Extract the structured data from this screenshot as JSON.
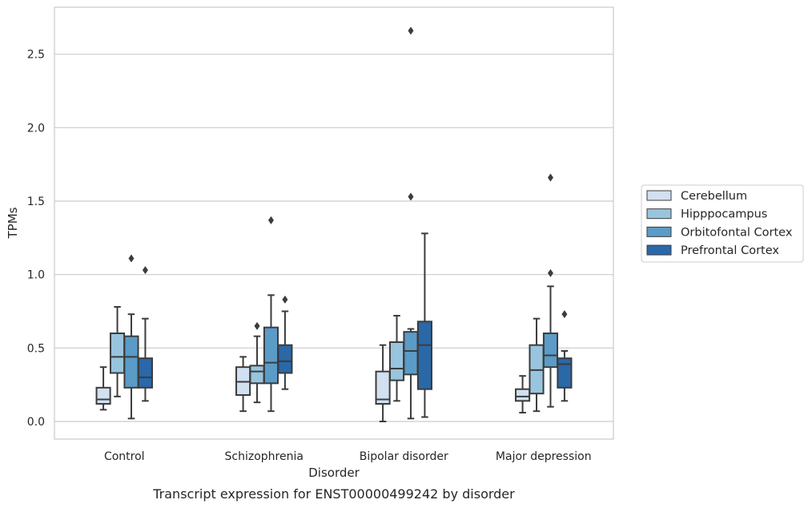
{
  "chart_data": {
    "type": "box",
    "caption": "Transcript expression for ENST00000499242 by disorder",
    "xlabel": "Disorder",
    "ylabel": "TPMs",
    "ylim": [
      -0.12,
      2.82
    ],
    "yticks": [
      0.0,
      0.5,
      1.0,
      1.5,
      2.0,
      2.5
    ],
    "ytick_labels": [
      "0.0",
      "0.5",
      "1.0",
      "1.5",
      "2.0",
      "2.5"
    ],
    "grid": "horizontal",
    "legend_position": "outside-right",
    "categories": [
      "Control",
      "Schizophrenia",
      "Bipolar disorder",
      "Major depression"
    ],
    "series": [
      {
        "name": "Cerebellum",
        "color": "#d1e1f1",
        "boxes": [
          {
            "whisker_low": 0.08,
            "q1": 0.12,
            "median": 0.15,
            "q3": 0.23,
            "whisker_high": 0.37,
            "outliers": []
          },
          {
            "whisker_low": 0.07,
            "q1": 0.18,
            "median": 0.27,
            "q3": 0.37,
            "whisker_high": 0.44,
            "outliers": []
          },
          {
            "whisker_low": 0.0,
            "q1": 0.12,
            "median": 0.15,
            "q3": 0.34,
            "whisker_high": 0.52,
            "outliers": []
          },
          {
            "whisker_low": 0.06,
            "q1": 0.14,
            "median": 0.17,
            "q3": 0.22,
            "whisker_high": 0.31,
            "outliers": []
          }
        ]
      },
      {
        "name": "Hipppocampus",
        "color": "#99c4dd",
        "boxes": [
          {
            "whisker_low": 0.17,
            "q1": 0.33,
            "median": 0.44,
            "q3": 0.6,
            "whisker_high": 0.78,
            "outliers": []
          },
          {
            "whisker_low": 0.13,
            "q1": 0.26,
            "median": 0.34,
            "q3": 0.38,
            "whisker_high": 0.58,
            "outliers": [
              0.65
            ]
          },
          {
            "whisker_low": 0.14,
            "q1": 0.28,
            "median": 0.36,
            "q3": 0.54,
            "whisker_high": 0.72,
            "outliers": []
          },
          {
            "whisker_low": 0.07,
            "q1": 0.19,
            "median": 0.35,
            "q3": 0.52,
            "whisker_high": 0.7,
            "outliers": []
          }
        ]
      },
      {
        "name": "Orbitofontal Cortex",
        "color": "#5a9bc8",
        "boxes": [
          {
            "whisker_low": 0.02,
            "q1": 0.23,
            "median": 0.44,
            "q3": 0.58,
            "whisker_high": 0.73,
            "outliers": [
              1.11
            ]
          },
          {
            "whisker_low": 0.07,
            "q1": 0.26,
            "median": 0.4,
            "q3": 0.64,
            "whisker_high": 0.86,
            "outliers": [
              1.37
            ]
          },
          {
            "whisker_low": 0.02,
            "q1": 0.32,
            "median": 0.48,
            "q3": 0.61,
            "whisker_high": 0.63,
            "outliers": [
              1.53,
              2.66
            ]
          },
          {
            "whisker_low": 0.1,
            "q1": 0.37,
            "median": 0.45,
            "q3": 0.6,
            "whisker_high": 0.92,
            "outliers": [
              1.01,
              1.66
            ]
          }
        ]
      },
      {
        "name": "Prefrontal Cortex",
        "color": "#2a68a8",
        "boxes": [
          {
            "whisker_low": 0.14,
            "q1": 0.23,
            "median": 0.3,
            "q3": 0.43,
            "whisker_high": 0.7,
            "outliers": [
              1.03
            ]
          },
          {
            "whisker_low": 0.22,
            "q1": 0.33,
            "median": 0.41,
            "q3": 0.52,
            "whisker_high": 0.75,
            "outliers": [
              0.83
            ]
          },
          {
            "whisker_low": 0.03,
            "q1": 0.22,
            "median": 0.52,
            "q3": 0.68,
            "whisker_high": 1.28,
            "outliers": []
          },
          {
            "whisker_low": 0.14,
            "q1": 0.23,
            "median": 0.39,
            "q3": 0.43,
            "whisker_high": 0.48,
            "outliers": [
              0.73
            ]
          }
        ]
      }
    ]
  }
}
